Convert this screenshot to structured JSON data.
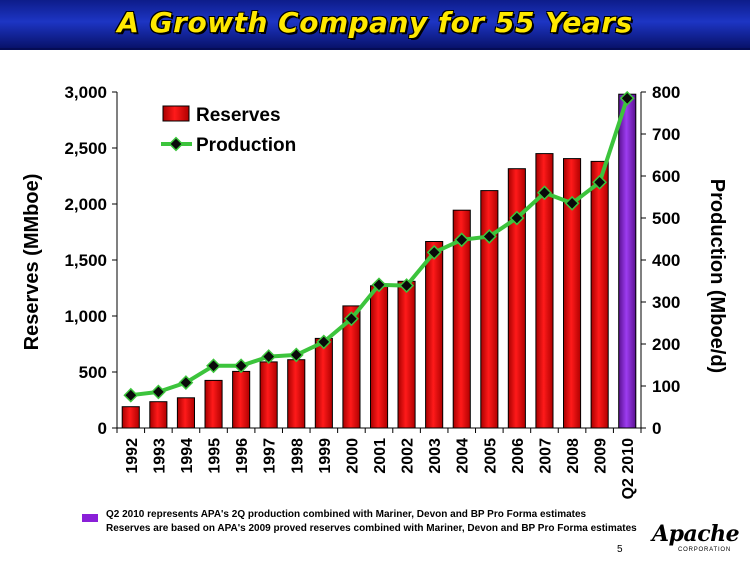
{
  "title": "A Growth Company for 55 Years",
  "page_number": "5",
  "logo": {
    "word": "Apache",
    "sub": "CORPORATION"
  },
  "notes": [
    "Q2 2010 represents APA's 2Q production combined with Mariner, Devon  and BP Pro Forma estimates",
    "Reserves are based on APA's 2009 proved reserves combined with Mariner, Devon and  BP Pro Forma estimates"
  ],
  "colors": {
    "reserves": "#e00000",
    "highlight": "#8a1fd8",
    "production": "#3cc43c",
    "title": "#ffe800",
    "title_bar": "#1a2fb5"
  },
  "chart_data": {
    "type": "bar",
    "title": "A Growth Company for 55 Years",
    "categories": [
      "1992",
      "1993",
      "1994",
      "1995",
      "1996",
      "1997",
      "1998",
      "1999",
      "2000",
      "2001",
      "2002",
      "2003",
      "2004",
      "2005",
      "2006",
      "2007",
      "2008",
      "2009",
      "Q2 2010"
    ],
    "series": [
      {
        "name": "Reserves",
        "type": "bar",
        "axis": "left",
        "values": [
          190,
          235,
          270,
          425,
          505,
          590,
          610,
          800,
          1090,
          1270,
          1310,
          1665,
          1945,
          2120,
          2315,
          2450,
          2405,
          2380,
          2980
        ]
      },
      {
        "name": "Production",
        "type": "line",
        "axis": "right",
        "values": [
          78,
          86,
          108,
          148,
          148,
          170,
          174,
          205,
          260,
          341,
          339,
          418,
          448,
          456,
          500,
          560,
          535,
          585,
          785
        ]
      }
    ],
    "ylabel_left": "Reserves (MMboe)",
    "ylabel_right": "Production (Mboe/d)",
    "ylim_left": [
      0,
      3000
    ],
    "ylim_right": [
      0,
      800
    ],
    "yticks_left": [
      "0",
      "500",
      "1,000",
      "1,500",
      "2,000",
      "2,500",
      "3,000"
    ],
    "yticks_right": [
      "0",
      "100",
      "200",
      "300",
      "400",
      "500",
      "600",
      "700",
      "800"
    ],
    "yticks_left_values": [
      0,
      500,
      1000,
      1500,
      2000,
      2500,
      3000
    ],
    "yticks_right_values": [
      0,
      100,
      200,
      300,
      400,
      500,
      600,
      700,
      800
    ],
    "legend": [
      "Reserves",
      "Production"
    ],
    "legend_position": "top-left",
    "grid": false
  }
}
